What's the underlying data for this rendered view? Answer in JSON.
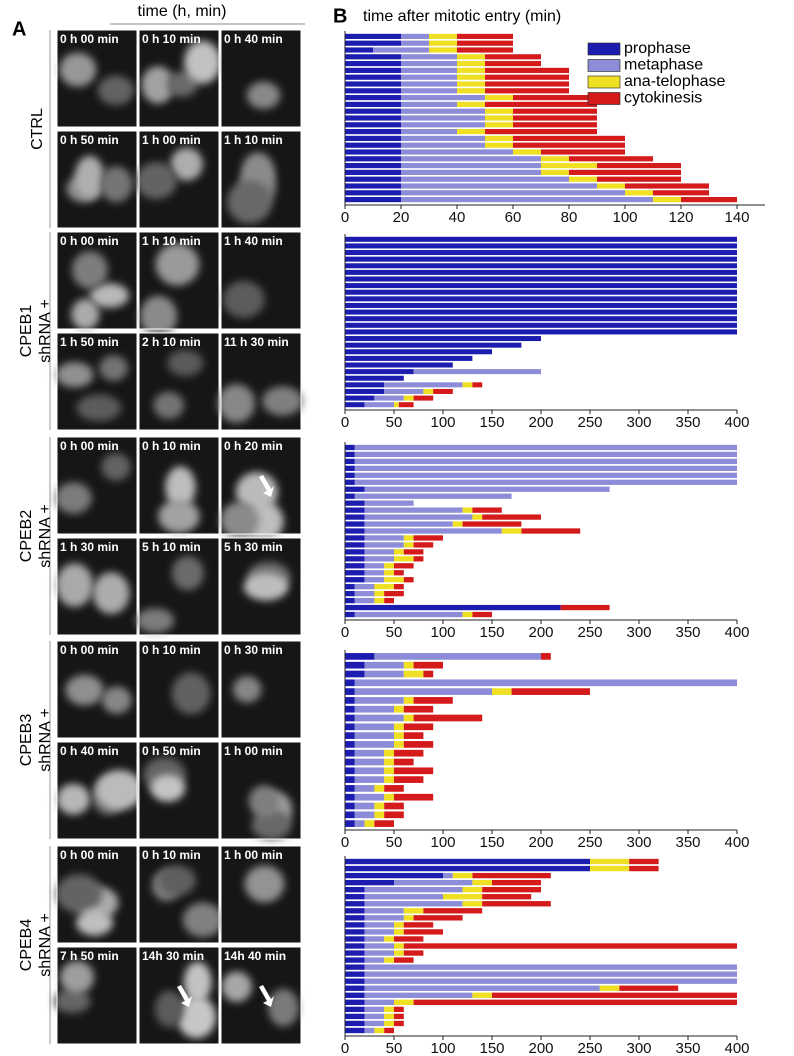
{
  "panel_labels": {
    "a": "A",
    "b": "B"
  },
  "panel_a": {
    "header": "time (h, min)",
    "rows": [
      {
        "label": [
          "CTRL"
        ],
        "timestamps": [
          "0 h 00 min",
          "0 h 10 min",
          "0 h 40 min",
          "0 h 50 min",
          "1 h 00 min",
          "1 h 10 min"
        ]
      },
      {
        "label": [
          "CPEB1",
          "shRNA +"
        ],
        "timestamps": [
          "0 h 00 min",
          "1 h 10 min",
          "1 h 40 min",
          "1 h 50 min",
          "2 h 10 min",
          "11 h 30 min"
        ]
      },
      {
        "label": [
          "CPEB2",
          "shRNA +"
        ],
        "timestamps": [
          "0 h 00 min",
          "0 h 10 min",
          "0 h 20 min",
          "1 h 30 min",
          "5 h 10 min",
          "5 h 30 min"
        ]
      },
      {
        "label": [
          "CPEB3",
          "shRNA +"
        ],
        "timestamps": [
          "0 h 00 min",
          "0 h 10 min",
          "0 h 30 min",
          "0 h 40 min",
          "0 h 50 min",
          "1 h 00 min"
        ]
      },
      {
        "label": [
          "CPEB4",
          "shRNA +"
        ],
        "timestamps": [
          "0 h 00 min",
          "0 h 10 min",
          "1 h 00 min",
          "7 h 50 min",
          "14h 30 min",
          "14h 40 min"
        ]
      }
    ]
  },
  "chart_data": [
    {
      "type": "bar",
      "orientation": "horizontal",
      "stacked": true,
      "title": "time after mitotic entry (min)",
      "xlim": [
        0,
        150
      ],
      "xticks": [
        0,
        20,
        40,
        60,
        80,
        100,
        120,
        140
      ],
      "legend": "top-right",
      "series": [
        {
          "name": "prophase",
          "color": "#1c1cb0",
          "values": [
            20,
            20,
            10,
            20,
            20,
            20,
            20,
            20,
            20,
            20,
            20,
            20,
            20,
            20,
            20,
            20,
            20,
            20,
            20,
            20,
            20,
            20,
            20,
            20,
            20
          ]
        },
        {
          "name": "metaphase",
          "color": "#8c8cd8",
          "values": [
            10,
            10,
            20,
            20,
            20,
            20,
            20,
            20,
            20,
            30,
            20,
            30,
            30,
            30,
            20,
            30,
            30,
            40,
            50,
            50,
            50,
            60,
            70,
            80,
            90
          ]
        },
        {
          "name": "ana-telophase",
          "color": "#f0e024",
          "values": [
            10,
            10,
            10,
            10,
            10,
            10,
            10,
            10,
            10,
            10,
            10,
            10,
            10,
            10,
            10,
            10,
            10,
            10,
            10,
            20,
            10,
            10,
            10,
            10,
            10
          ]
        },
        {
          "name": "cytokinesis",
          "color": "#d41a1a",
          "values": [
            20,
            20,
            20,
            20,
            20,
            30,
            30,
            30,
            30,
            30,
            40,
            30,
            30,
            30,
            40,
            40,
            40,
            30,
            30,
            30,
            40,
            30,
            30,
            20,
            20
          ]
        }
      ]
    },
    {
      "type": "bar",
      "orientation": "horizontal",
      "stacked": true,
      "xlim": [
        0,
        400
      ],
      "xticks": [
        0,
        50,
        100,
        150,
        200,
        250,
        300,
        350,
        400
      ],
      "series": [
        {
          "color": "#1c1cb0",
          "values": [
            400,
            400,
            400,
            400,
            400,
            400,
            400,
            400,
            400,
            400,
            400,
            400,
            400,
            400,
            400,
            200,
            180,
            150,
            130,
            110,
            70,
            60,
            40,
            40,
            30,
            20
          ]
        },
        {
          "color": "#8c8cd8",
          "values": [
            0,
            0,
            0,
            0,
            0,
            0,
            0,
            0,
            0,
            0,
            0,
            0,
            0,
            0,
            0,
            0,
            0,
            0,
            0,
            0,
            130,
            0,
            80,
            40,
            30,
            30
          ]
        },
        {
          "color": "#f0e024",
          "values": [
            0,
            0,
            0,
            0,
            0,
            0,
            0,
            0,
            0,
            0,
            0,
            0,
            0,
            0,
            0,
            0,
            0,
            0,
            0,
            0,
            0,
            0,
            10,
            10,
            10,
            5
          ]
        },
        {
          "color": "#d41a1a",
          "values": [
            0,
            0,
            0,
            0,
            0,
            0,
            0,
            0,
            0,
            0,
            0,
            0,
            0,
            0,
            0,
            0,
            0,
            0,
            0,
            0,
            0,
            0,
            10,
            20,
            20,
            15
          ]
        }
      ]
    },
    {
      "type": "bar",
      "orientation": "horizontal",
      "stacked": true,
      "xlim": [
        0,
        400
      ],
      "xticks": [
        0,
        50,
        100,
        150,
        200,
        250,
        300,
        350,
        400
      ],
      "series": [
        {
          "color": "#1c1cb0",
          "values": [
            10,
            10,
            10,
            10,
            10,
            10,
            20,
            10,
            20,
            20,
            20,
            20,
            20,
            20,
            20,
            20,
            20,
            20,
            20,
            20,
            10,
            10,
            10,
            220,
            10
          ]
        },
        {
          "color": "#8c8cd8",
          "values": [
            390,
            390,
            390,
            390,
            390,
            390,
            250,
            160,
            50,
            100,
            110,
            90,
            140,
            40,
            40,
            30,
            30,
            20,
            20,
            20,
            20,
            20,
            20,
            0,
            110
          ]
        },
        {
          "color": "#f0e024",
          "values": [
            0,
            0,
            0,
            0,
            0,
            0,
            0,
            0,
            0,
            10,
            10,
            10,
            20,
            10,
            10,
            10,
            20,
            10,
            10,
            20,
            20,
            10,
            10,
            0,
            10
          ]
        },
        {
          "color": "#d41a1a",
          "values": [
            0,
            0,
            0,
            0,
            0,
            0,
            0,
            0,
            0,
            30,
            60,
            60,
            60,
            30,
            20,
            20,
            10,
            20,
            10,
            10,
            10,
            20,
            10,
            50,
            20
          ]
        }
      ]
    },
    {
      "type": "bar",
      "orientation": "horizontal",
      "stacked": true,
      "xlim": [
        0,
        400
      ],
      "xticks": [
        0,
        50,
        100,
        150,
        200,
        250,
        300,
        350,
        400
      ],
      "series": [
        {
          "color": "#1c1cb0",
          "values": [
            30,
            20,
            20,
            10,
            10,
            10,
            10,
            10,
            10,
            10,
            10,
            10,
            10,
            10,
            10,
            10,
            10,
            10,
            10,
            10
          ]
        },
        {
          "color": "#8c8cd8",
          "values": [
            170,
            40,
            40,
            390,
            140,
            50,
            40,
            50,
            40,
            40,
            40,
            30,
            30,
            30,
            30,
            20,
            30,
            20,
            20,
            10
          ]
        },
        {
          "color": "#f0e024",
          "values": [
            0,
            10,
            20,
            0,
            20,
            10,
            10,
            10,
            10,
            10,
            10,
            10,
            10,
            10,
            10,
            10,
            10,
            10,
            10,
            10
          ]
        },
        {
          "color": "#d41a1a",
          "values": [
            10,
            30,
            10,
            0,
            80,
            40,
            30,
            70,
            30,
            20,
            30,
            30,
            20,
            40,
            30,
            20,
            40,
            20,
            20,
            20
          ]
        }
      ]
    },
    {
      "type": "bar",
      "orientation": "horizontal",
      "stacked": true,
      "xlim": [
        0,
        400
      ],
      "xticks": [
        0,
        50,
        100,
        150,
        200,
        250,
        300,
        350,
        400
      ],
      "series": [
        {
          "color": "#1c1cb0",
          "values": [
            250,
            250,
            100,
            50,
            20,
            20,
            20,
            20,
            20,
            20,
            20,
            20,
            20,
            20,
            20,
            20,
            20,
            20,
            20,
            20,
            20,
            20,
            20,
            20,
            20
          ]
        },
        {
          "color": "#8c8cd8",
          "values": [
            0,
            0,
            10,
            80,
            100,
            80,
            100,
            40,
            40,
            30,
            30,
            20,
            30,
            30,
            20,
            380,
            380,
            380,
            240,
            110,
            30,
            20,
            20,
            20,
            10
          ]
        },
        {
          "color": "#f0e024",
          "values": [
            40,
            40,
            20,
            20,
            20,
            40,
            20,
            20,
            10,
            10,
            10,
            10,
            10,
            10,
            10,
            0,
            0,
            0,
            20,
            20,
            20,
            10,
            10,
            10,
            10
          ]
        },
        {
          "color": "#d41a1a",
          "values": [
            30,
            30,
            80,
            50,
            60,
            50,
            70,
            60,
            50,
            30,
            40,
            30,
            340,
            20,
            20,
            0,
            0,
            0,
            60,
            250,
            330,
            10,
            10,
            10,
            10
          ]
        }
      ]
    }
  ]
}
